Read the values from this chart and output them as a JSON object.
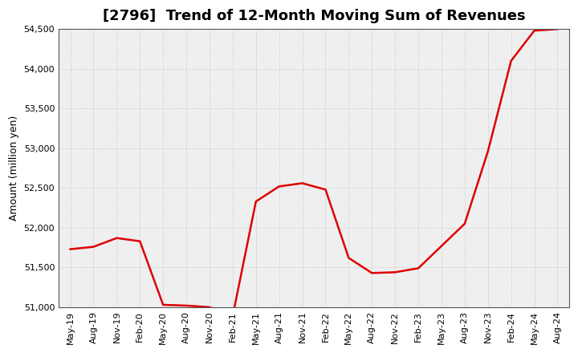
{
  "title": "[2796]  Trend of 12-Month Moving Sum of Revenues",
  "ylabel": "Amount (million yen)",
  "line_color": "#DD0000",
  "line_width": 1.8,
  "background_color": "#FFFFFF",
  "plot_bg_color": "#EFEFEF",
  "grid_color": "#BBBBBB",
  "ylim": [
    51000,
    54500
  ],
  "yticks": [
    51000,
    51500,
    52000,
    52500,
    53000,
    53500,
    54000,
    54500
  ],
  "values": [
    51730,
    51760,
    51870,
    51830,
    51030,
    51020,
    51000,
    50890,
    52330,
    52520,
    52560,
    52480,
    51620,
    51430,
    51440,
    51490,
    51770,
    52050,
    52960,
    54100,
    54480,
    54500
  ],
  "xtick_labels": [
    "May-19",
    "Aug-19",
    "Nov-19",
    "Feb-20",
    "May-20",
    "Aug-20",
    "Nov-20",
    "Feb-21",
    "May-21",
    "Aug-21",
    "Nov-21",
    "Feb-22",
    "May-22",
    "Aug-22",
    "Nov-22",
    "Feb-23",
    "May-23",
    "Aug-23",
    "Nov-23",
    "Feb-24",
    "May-24",
    "Aug-24"
  ],
  "title_fontsize": 13,
  "tick_fontsize": 8,
  "ylabel_fontsize": 9
}
